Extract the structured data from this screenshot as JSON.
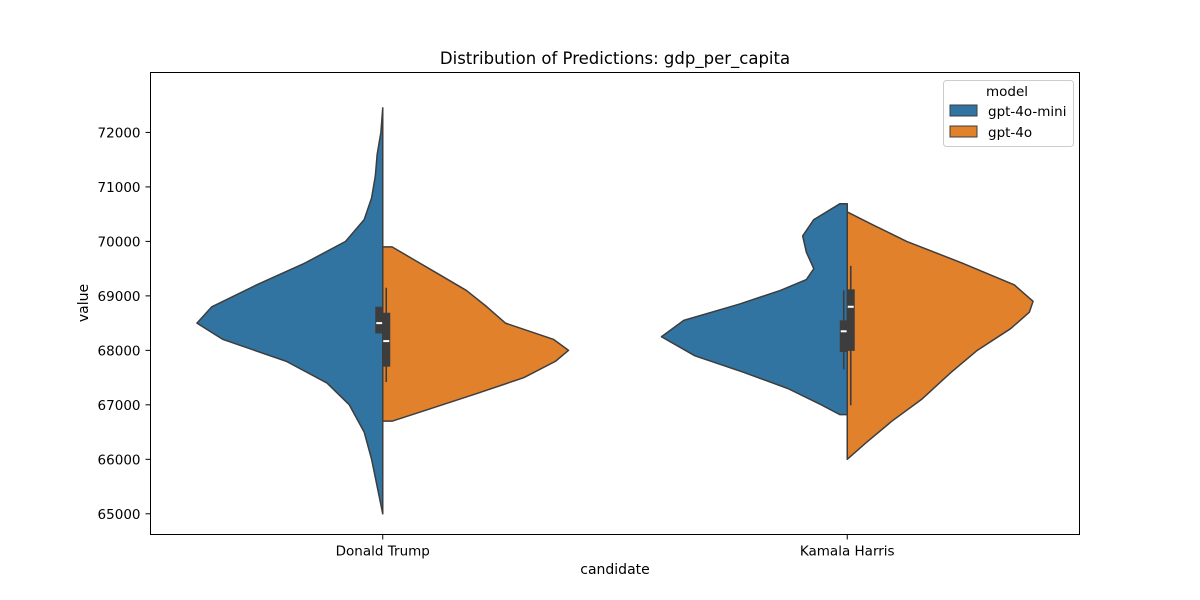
{
  "chart_data": {
    "type": "violin",
    "title": "Distribution of Predictions: gdp_per_capita",
    "xlabel": "candidate",
    "ylabel": "value",
    "categories": [
      "Donald Trump",
      "Kamala Harris"
    ],
    "y_ticks": [
      65000,
      66000,
      67000,
      68000,
      69000,
      70000,
      71000,
      72000
    ],
    "ylim": [
      64620,
      73100
    ],
    "grid": false,
    "legend": {
      "title": "model",
      "placement": "top-right"
    },
    "series": [
      {
        "name": "gpt-4o-mini",
        "color": "#3274a1",
        "side": "left",
        "groups": [
          {
            "category": "Donald Trump",
            "range": [
              65000,
              72450
            ],
            "quartiles": [
              68310,
              68500,
              68800
            ],
            "whiskers": [
              68310,
              68800
            ],
            "density": [
              [
                65000,
                0.0
              ],
              [
                65500,
                0.03
              ],
              [
                66000,
                0.06
              ],
              [
                66500,
                0.1
              ],
              [
                67000,
                0.18
              ],
              [
                67400,
                0.3
              ],
              [
                67800,
                0.52
              ],
              [
                68200,
                0.86
              ],
              [
                68500,
                1.0
              ],
              [
                68800,
                0.92
              ],
              [
                69200,
                0.68
              ],
              [
                69600,
                0.42
              ],
              [
                70000,
                0.2
              ],
              [
                70400,
                0.1
              ],
              [
                70800,
                0.06
              ],
              [
                71200,
                0.04
              ],
              [
                71600,
                0.03
              ],
              [
                72000,
                0.01
              ],
              [
                72450,
                0.0
              ]
            ]
          },
          {
            "category": "Kamala Harris",
            "range": [
              66820,
              70690
            ],
            "quartiles": [
              67970,
              68350,
              68550
            ],
            "whiskers": [
              67650,
              69100
            ],
            "density": [
              [
                66820,
                0.04
              ],
              [
                67000,
                0.14
              ],
              [
                67300,
                0.32
              ],
              [
                67600,
                0.56
              ],
              [
                67900,
                0.82
              ],
              [
                68250,
                1.0
              ],
              [
                68550,
                0.88
              ],
              [
                68850,
                0.58
              ],
              [
                69100,
                0.36
              ],
              [
                69300,
                0.22
              ],
              [
                69500,
                0.18
              ],
              [
                69800,
                0.22
              ],
              [
                70100,
                0.24
              ],
              [
                70400,
                0.18
              ],
              [
                70690,
                0.04
              ]
            ]
          }
        ]
      },
      {
        "name": "gpt-4o",
        "color": "#e1812c",
        "side": "right",
        "groups": [
          {
            "category": "Donald Trump",
            "range": [
              66700,
              69900
            ],
            "quartiles": [
              67700,
              68170,
              68690
            ],
            "whiskers": [
              67420,
              69150
            ],
            "density": [
              [
                66700,
                0.05
              ],
              [
                66900,
                0.23
              ],
              [
                67200,
                0.5
              ],
              [
                67500,
                0.76
              ],
              [
                67800,
                0.93
              ],
              [
                68000,
                1.0
              ],
              [
                68200,
                0.92
              ],
              [
                68500,
                0.66
              ],
              [
                68800,
                0.56
              ],
              [
                69100,
                0.45
              ],
              [
                69400,
                0.3
              ],
              [
                69700,
                0.15
              ],
              [
                69900,
                0.05
              ]
            ]
          },
          {
            "category": "Kamala Harris",
            "range": [
              66000,
              70540
            ],
            "quartiles": [
              67990,
              68800,
              69120
            ],
            "whiskers": [
              66990,
              69550
            ],
            "density": [
              [
                66000,
                0.0
              ],
              [
                66300,
                0.1
              ],
              [
                66700,
                0.24
              ],
              [
                67100,
                0.4
              ],
              [
                67600,
                0.56
              ],
              [
                68000,
                0.7
              ],
              [
                68400,
                0.88
              ],
              [
                68700,
                0.98
              ],
              [
                68900,
                1.0
              ],
              [
                69200,
                0.9
              ],
              [
                69600,
                0.62
              ],
              [
                70000,
                0.32
              ],
              [
                70300,
                0.14
              ],
              [
                70540,
                0.0
              ]
            ]
          }
        ]
      }
    ]
  }
}
